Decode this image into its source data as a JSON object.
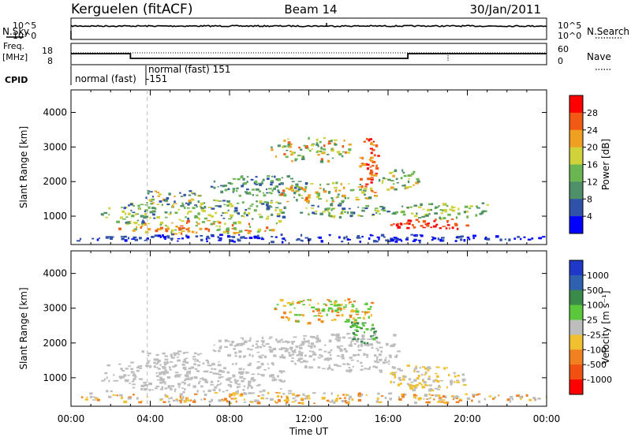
{
  "header": {
    "station": "Kerguelen (fitACF)",
    "beam": "Beam 14",
    "date": "30/Jan/2011"
  },
  "noise_panel": {
    "left_label": "N.Sky",
    "right_label": "N.Search",
    "tick_top": "10^5",
    "tick_bottom": "10^0"
  },
  "freq_panel": {
    "left_label_line1": "Freq.",
    "left_label_line2": "[MHz]",
    "left_ticks": [
      "18",
      "8"
    ],
    "right_ticks": [
      "60",
      "0"
    ],
    "right_label": "Nave"
  },
  "cpid_panel": {
    "label": "CPID",
    "entries": [
      {
        "text": "normal (fast)",
        "sub": "-151"
      },
      {
        "text": "normal (fast) 151",
        "sub": ""
      }
    ]
  },
  "colors": {
    "axis": "#000000",
    "dashed_marker": "#bbbbbb",
    "ground_scatter": "#bdbdbd"
  },
  "chart_data": [
    {
      "type": "heatmap",
      "name": "power",
      "ylabel": "Slant Range [km]",
      "xlim": [
        0,
        24
      ],
      "ylim": [
        180,
        4650
      ],
      "yticks": [
        1000,
        2000,
        3000,
        4000
      ],
      "colorbar": {
        "label": "Power [dB]",
        "ticks": [
          "4",
          "8",
          "12",
          "16",
          "20",
          "24",
          "28"
        ],
        "colors": [
          "#0000ff",
          "#2f52a8",
          "#4f8f6a",
          "#6bb552",
          "#cfd23a",
          "#f0a020",
          "#f05a14",
          "#ff0000"
        ]
      },
      "blobs": [
        {
          "t": [
            2.2,
            10.5
          ],
          "r": [
            500,
            900
          ],
          "levels": [
            3,
            4,
            5,
            6
          ]
        },
        {
          "t": [
            1.5,
            4.5
          ],
          "r": [
            800,
            1400
          ],
          "levels": [
            1,
            2,
            3,
            4
          ]
        },
        {
          "t": [
            4.5,
            11
          ],
          "r": [
            900,
            1500
          ],
          "levels": [
            1,
            2,
            3,
            4
          ]
        },
        {
          "t": [
            3.5,
            6.5
          ],
          "r": [
            1300,
            1800
          ],
          "levels": [
            1,
            2,
            3,
            4,
            5
          ]
        },
        {
          "t": [
            7,
            12
          ],
          "r": [
            1600,
            2200
          ],
          "levels": [
            1,
            2,
            3
          ]
        },
        {
          "t": [
            10.5,
            15.5
          ],
          "r": [
            1400,
            2000
          ],
          "levels": [
            2,
            3,
            4,
            5,
            6
          ]
        },
        {
          "t": [
            11.5,
            16
          ],
          "r": [
            1000,
            1400
          ],
          "levels": [
            1,
            2,
            3,
            4
          ]
        },
        {
          "t": [
            10,
            14
          ],
          "r": [
            2600,
            3300
          ],
          "levels": [
            2,
            3,
            4,
            5,
            6
          ]
        },
        {
          "t": [
            14.5,
            15.5
          ],
          "r": [
            1900,
            3300
          ],
          "levels": [
            5,
            6,
            7
          ]
        },
        {
          "t": [
            15.5,
            17.5
          ],
          "r": [
            1800,
            2400
          ],
          "levels": [
            2,
            3,
            4,
            5
          ]
        },
        {
          "t": [
            16,
            20
          ],
          "r": [
            650,
            950
          ],
          "levels": [
            6,
            7
          ]
        },
        {
          "t": [
            16,
            21
          ],
          "r": [
            950,
            1400
          ],
          "levels": [
            2,
            3,
            4
          ]
        },
        {
          "t": [
            0,
            24
          ],
          "r": [
            280,
            500
          ],
          "levels": [
            0,
            1
          ]
        }
      ]
    },
    {
      "type": "heatmap",
      "name": "velocity",
      "ylabel": "Slant Range [km]",
      "xlabel": "Time UT",
      "xlim": [
        0,
        24
      ],
      "ylim": [
        180,
        4650
      ],
      "yticks": [
        1000,
        2000,
        3000,
        4000
      ],
      "xticks": [
        "00:00",
        "04:00",
        "08:00",
        "12:00",
        "16:00",
        "20:00",
        "00:00"
      ],
      "colorbar": {
        "label": "Velocity [m s⁻¹]",
        "ticks": [
          "1000",
          "500",
          "100",
          "25",
          "-25",
          "-100",
          "-500",
          "-1000"
        ],
        "colors": [
          "#2038c8",
          "#3060b0",
          "#3a8a4a",
          "#5ac83a",
          "#bdbdbd",
          "#f0c030",
          "#f08020",
          "#f05010",
          "#ff0000"
        ]
      },
      "blobs": [
        {
          "t": [
            1.5,
            11
          ],
          "r": [
            600,
            1500
          ],
          "levels": [
            4
          ]
        },
        {
          "t": [
            3.5,
            7
          ],
          "r": [
            1300,
            1800
          ],
          "levels": [
            4
          ]
        },
        {
          "t": [
            7,
            12
          ],
          "r": [
            1600,
            2200
          ],
          "levels": [
            4
          ]
        },
        {
          "t": [
            10.5,
            16.5
          ],
          "r": [
            1200,
            2300
          ],
          "levels": [
            4
          ]
        },
        {
          "t": [
            16,
            20
          ],
          "r": [
            650,
            1400
          ],
          "levels": [
            4,
            5
          ]
        },
        {
          "t": [
            10,
            15.5
          ],
          "r": [
            2600,
            3300
          ],
          "levels": [
            3,
            5,
            6
          ]
        },
        {
          "t": [
            14,
            15.5
          ],
          "r": [
            2000,
            2700
          ],
          "levels": [
            2,
            3
          ]
        },
        {
          "t": [
            0,
            24
          ],
          "r": [
            280,
            600
          ],
          "levels": [
            4,
            5,
            6
          ]
        }
      ]
    }
  ]
}
